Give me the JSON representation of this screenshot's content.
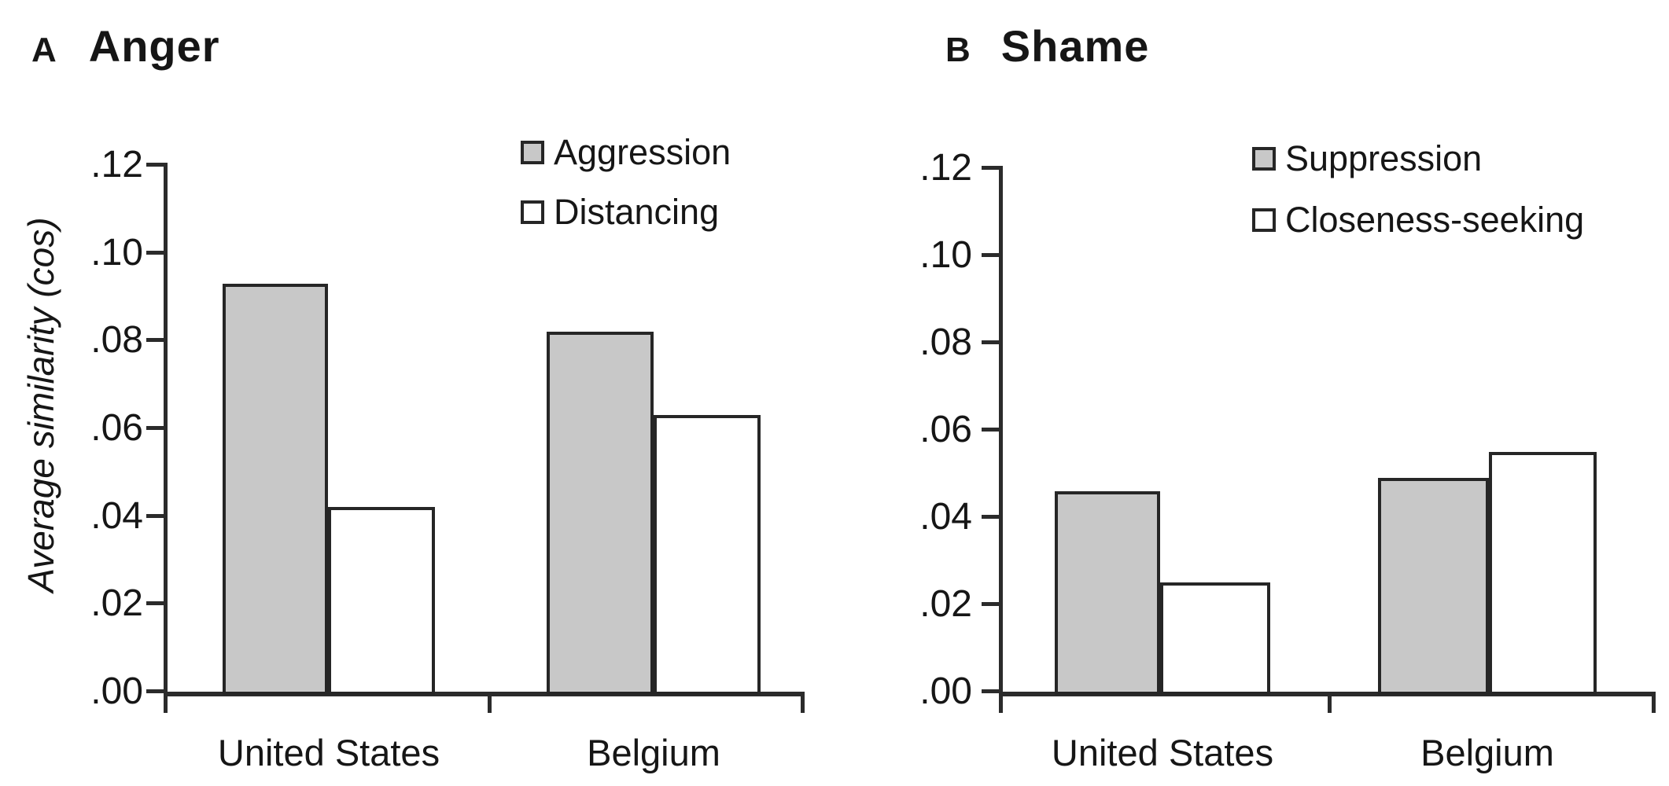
{
  "figure": {
    "panels": [
      {
        "panel_label": "A",
        "title": "Anger",
        "ylabel": "Average similarity (cos)"
      },
      {
        "panel_label": "B",
        "title": "Shame"
      }
    ]
  },
  "colors": {
    "bar_gray": "#c8c8c8",
    "bar_white": "#ffffff",
    "line": "#262626"
  },
  "chart_data": [
    {
      "type": "bar",
      "title": "Anger",
      "panel_label": "A",
      "ylabel": "Average similarity (cos)",
      "categories": [
        "United States",
        "Belgium"
      ],
      "series": [
        {
          "name": "Aggression",
          "fill": "#c8c8c8",
          "values": [
            0.093,
            0.082
          ]
        },
        {
          "name": "Distancing",
          "fill": "#ffffff",
          "values": [
            0.042,
            0.063
          ]
        }
      ],
      "ylim": [
        0,
        0.12
      ],
      "ytick_step": 0.02,
      "yticks": [
        ".00",
        ".02",
        ".04",
        ".06",
        ".08",
        ".10",
        ".12"
      ],
      "legend_position": "top-right",
      "grid": false
    },
    {
      "type": "bar",
      "title": "Shame",
      "panel_label": "B",
      "categories": [
        "United States",
        "Belgium"
      ],
      "series": [
        {
          "name": "Suppression",
          "fill": "#c8c8c8",
          "values": [
            0.046,
            0.049
          ]
        },
        {
          "name": "Closeness-seeking",
          "fill": "#ffffff",
          "values": [
            0.025,
            0.055
          ]
        }
      ],
      "ylim": [
        0,
        0.12
      ],
      "ytick_step": 0.02,
      "yticks": [
        ".00",
        ".02",
        ".04",
        ".06",
        ".08",
        ".10",
        ".12"
      ],
      "legend_position": "top-right",
      "grid": false
    }
  ]
}
